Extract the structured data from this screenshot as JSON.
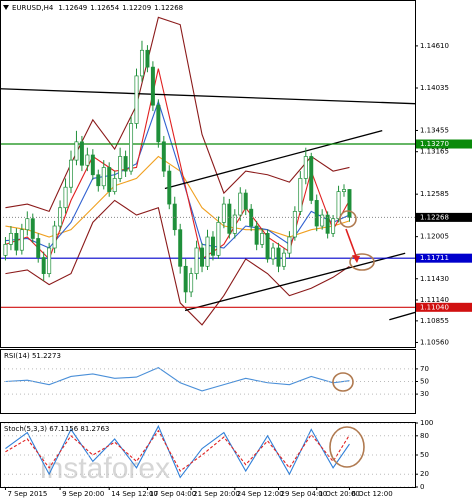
{
  "watermark": "instaforex",
  "chart_data": [
    {
      "type": "candlestick",
      "title": "EURUSD,H4",
      "xlim": [
        -1,
        75
      ],
      "xticks": [
        {
          "value": 0,
          "label": "7 Sep 2015"
        },
        {
          "value": 10,
          "label": "9 Sep 20:00"
        },
        {
          "value": 19,
          "label": "14 Sep 12:00"
        },
        {
          "value": 26,
          "label": "17 Sep 04:00"
        },
        {
          "value": 34,
          "label": "21 Sep 20:00"
        },
        {
          "value": 42,
          "label": "24 Sep 12:00"
        },
        {
          "value": 50,
          "label": "29 Sep 04:00"
        },
        {
          "value": 57,
          "label": "1 Oct 20:00"
        },
        {
          "value": 63,
          "label": "6 Oct 12:00"
        }
      ],
      "ylim": [
        1.10498,
        1.15223
      ],
      "yticks": [
        {
          "value": 1.1461,
          "label": "1.14610"
        },
        {
          "value": 1.14035,
          "label": "1.14035"
        },
        {
          "value": 1.13455,
          "label": "1.13455"
        },
        {
          "value": 1.13165,
          "label": "1.13165"
        },
        {
          "value": 1.12585,
          "label": "1.12585"
        },
        {
          "value": 1.12005,
          "label": "1.12005"
        },
        {
          "value": 1.1143,
          "label": "1.11430"
        },
        {
          "value": 1.1114,
          "label": "1.11140"
        },
        {
          "value": 1.10855,
          "label": "1.10855"
        },
        {
          "value": 1.1056,
          "label": "1.10560"
        }
      ],
      "grid": false,
      "up_color": "#ffffff",
      "down_color": "#1f8f3a",
      "outline_color": "#1f8f3a",
      "x": [
        0,
        1,
        2,
        3,
        4,
        5,
        6,
        7,
        8,
        9,
        10,
        11,
        12,
        13,
        14,
        15,
        16,
        17,
        18,
        19,
        20,
        21,
        22,
        23,
        24,
        25,
        26,
        27,
        28,
        29,
        30,
        31,
        32,
        33,
        34,
        35,
        36,
        37,
        38,
        39,
        40,
        41,
        42,
        43,
        44,
        45,
        46,
        47,
        48,
        49,
        50,
        51,
        52,
        53,
        54,
        55,
        56,
        57,
        58,
        59,
        60,
        61,
        62,
        63
      ],
      "ohlc": {
        "open": [
          1.1175,
          1.119,
          1.1205,
          1.1182,
          1.121,
          1.1225,
          1.1198,
          1.1172,
          1.115,
          1.1185,
          1.1215,
          1.124,
          1.1268,
          1.1305,
          1.133,
          1.1298,
          1.1312,
          1.1285,
          1.127,
          1.1295,
          1.1262,
          1.128,
          1.131,
          1.129,
          1.1355,
          1.142,
          1.1455,
          1.1432,
          1.138,
          1.133,
          1.129,
          1.1245,
          1.121,
          1.116,
          1.1125,
          1.115,
          1.1185,
          1.116,
          1.12,
          1.1175,
          1.122,
          1.1245,
          1.1205,
          1.123,
          1.126,
          1.1238,
          1.1215,
          1.119,
          1.1205,
          1.117,
          1.1185,
          1.116,
          1.1178,
          1.12,
          1.1235,
          1.128,
          1.131,
          1.125,
          1.1215,
          1.123,
          1.1205,
          1.1225,
          1.1262,
          1.12649
        ],
        "high": [
          1.12,
          1.1215,
          1.1212,
          1.1218,
          1.1235,
          1.1232,
          1.1205,
          1.118,
          1.1192,
          1.1222,
          1.125,
          1.128,
          1.1318,
          1.1345,
          1.1338,
          1.1322,
          1.132,
          1.1292,
          1.1305,
          1.1302,
          1.129,
          1.1322,
          1.1318,
          1.1365,
          1.143,
          1.1468,
          1.1462,
          1.144,
          1.1388,
          1.1338,
          1.1298,
          1.1255,
          1.1218,
          1.117,
          1.1158,
          1.1195,
          1.1192,
          1.121,
          1.1208,
          1.1228,
          1.1255,
          1.1252,
          1.1238,
          1.1268,
          1.1265,
          1.1245,
          1.1222,
          1.1212,
          1.121,
          1.1192,
          1.1192,
          1.1185,
          1.1208,
          1.1242,
          1.129,
          1.1322,
          1.1315,
          1.1258,
          1.1238,
          1.1235,
          1.123,
          1.127,
          1.1272,
          1.12654
        ],
        "low": [
          1.1168,
          1.1182,
          1.1175,
          1.1176,
          1.1202,
          1.1192,
          1.1165,
          1.114,
          1.1145,
          1.1178,
          1.1208,
          1.1232,
          1.126,
          1.1298,
          1.129,
          1.129,
          1.1278,
          1.1262,
          1.1265,
          1.1255,
          1.1258,
          1.1275,
          1.1282,
          1.1285,
          1.1348,
          1.1412,
          1.1425,
          1.1372,
          1.1322,
          1.1282,
          1.1238,
          1.1202,
          1.115,
          1.111,
          1.1118,
          1.1142,
          1.1152,
          1.1155,
          1.1168,
          1.117,
          1.1212,
          1.1198,
          1.1198,
          1.1222,
          1.123,
          1.1208,
          1.1182,
          1.1185,
          1.1165,
          1.1162,
          1.1152,
          1.1155,
          1.1172,
          1.1195,
          1.123,
          1.1272,
          1.1245,
          1.1208,
          1.121,
          1.1198,
          1.12,
          1.122,
          1.1255,
          1.12209
        ],
        "close": [
          1.119,
          1.1205,
          1.1182,
          1.121,
          1.1225,
          1.1198,
          1.1172,
          1.115,
          1.1185,
          1.1215,
          1.124,
          1.1268,
          1.1305,
          1.133,
          1.1298,
          1.1312,
          1.1285,
          1.127,
          1.1295,
          1.1262,
          1.128,
          1.131,
          1.129,
          1.1355,
          1.142,
          1.1455,
          1.1432,
          1.138,
          1.133,
          1.129,
          1.1245,
          1.121,
          1.116,
          1.1125,
          1.115,
          1.1185,
          1.116,
          1.12,
          1.1175,
          1.122,
          1.1245,
          1.1205,
          1.123,
          1.126,
          1.1238,
          1.1215,
          1.119,
          1.1205,
          1.117,
          1.1185,
          1.116,
          1.1178,
          1.12,
          1.1235,
          1.128,
          1.131,
          1.125,
          1.1215,
          1.123,
          1.1205,
          1.1225,
          1.1262,
          1.12649,
          1.12268
        ]
      },
      "indicators": {
        "x": [
          0,
          4,
          8,
          12,
          16,
          20,
          24,
          28,
          32,
          36,
          40,
          44,
          48,
          52,
          56,
          60,
          63
        ],
        "lines": [
          {
            "color": "#8b1a1a",
            "values": [
              1.124,
              1.1245,
              1.1235,
              1.13,
              1.136,
              1.132,
              1.138,
              1.15,
              1.149,
              1.134,
              1.126,
              1.129,
              1.1285,
              1.1275,
              1.131,
              1.129,
              1.1295
            ]
          },
          {
            "color": "#8b1a1a",
            "values": [
              1.115,
              1.1155,
              1.1135,
              1.115,
              1.122,
              1.125,
              1.123,
              1.124,
              1.111,
              1.108,
              1.112,
              1.117,
              1.115,
              1.112,
              1.113,
              1.1145,
              1.116
            ]
          },
          {
            "color": "#f0a020",
            "values": [
              1.1215,
              1.121,
              1.12,
              1.121,
              1.124,
              1.127,
              1.128,
              1.131,
              1.129,
              1.124,
              1.1215,
              1.121,
              1.121,
              1.12,
              1.121,
              1.1215,
              1.1222
            ]
          },
          {
            "color": "#3060d0",
            "values": [
              1.1195,
              1.1198,
              1.1185,
              1.122,
              1.128,
              1.1285,
              1.13,
              1.1385,
              1.129,
              1.119,
              1.1185,
              1.1215,
              1.121,
              1.119,
              1.1235,
              1.122,
              1.123
            ]
          },
          {
            "color": "#e02020",
            "values": [
              1.119,
              1.12,
              1.117,
              1.125,
              1.131,
              1.129,
              1.1295,
              1.143,
              1.13,
              1.117,
              1.119,
              1.124,
              1.12,
              1.118,
              1.129,
              1.121,
              1.125
            ]
          }
        ]
      },
      "levels": [
        {
          "value": 1.1327,
          "label": "1.13270",
          "color": "#0a8a0a"
        },
        {
          "value": 1.11711,
          "label": "1.11711",
          "color": "#0000cc"
        },
        {
          "value": 1.1104,
          "label": "1.11040",
          "color": "#d01010"
        }
      ],
      "price_color": "#000000",
      "trendline_color": "#000000",
      "trendlines": [
        {
          "x": [
            -1,
            75
          ],
          "y": [
            1.14025,
            1.13821
          ]
        },
        {
          "x": [
            29.2,
            69
          ],
          "y": [
            1.12663,
            1.13453
          ]
        },
        {
          "x": [
            32.9,
            73.2
          ],
          "y": [
            1.10997,
            1.11778
          ]
        },
        {
          "x": [
            70.3,
            75
          ],
          "y": [
            1.1087,
            1.1097
          ]
        }
      ]
    },
    {
      "type": "line",
      "title": "RSI(14) 51.2273",
      "xlim": [
        -1,
        75
      ],
      "ylim": [
        0,
        100
      ],
      "yticks": [
        30,
        50,
        70
      ],
      "grid": false,
      "x": [
        0,
        4,
        8,
        12,
        16,
        20,
        24,
        28,
        32,
        36,
        40,
        44,
        48,
        52,
        56,
        60,
        63
      ],
      "series": [
        {
          "color": "#4a8fd8",
          "values": [
            50,
            52,
            45,
            58,
            62,
            55,
            57,
            72,
            48,
            35,
            45,
            55,
            48,
            45,
            58,
            48,
            51.2273
          ]
        }
      ]
    },
    {
      "type": "line",
      "title": "Stoch(5,3,3) 67.1156 81.2763",
      "xlim": [
        -1,
        75
      ],
      "ylim": [
        0,
        100
      ],
      "yticks": [
        0,
        20,
        50,
        80,
        100
      ],
      "grid": false,
      "x": [
        0,
        4,
        8,
        12,
        16,
        20,
        24,
        28,
        32,
        36,
        40,
        44,
        48,
        52,
        56,
        60,
        63
      ],
      "series": [
        {
          "color": "#2f7fd8",
          "values": [
            60,
            85,
            20,
            90,
            40,
            75,
            30,
            95,
            15,
            60,
            85,
            25,
            80,
            20,
            90,
            30,
            67.1156
          ]
        },
        {
          "color": "#e02020",
          "dashed": true,
          "values": [
            55,
            75,
            30,
            80,
            50,
            70,
            40,
            88,
            25,
            50,
            78,
            35,
            72,
            30,
            82,
            40,
            81.2763
          ]
        }
      ]
    }
  ]
}
